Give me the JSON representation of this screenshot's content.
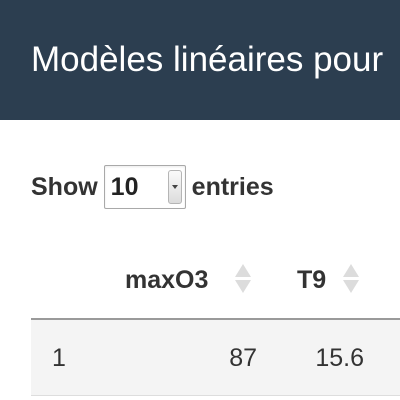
{
  "header": {
    "title": "Modèles linéaires pour"
  },
  "length_menu": {
    "prefix": "Show",
    "selected": "10",
    "suffix": "entries"
  },
  "table": {
    "columns": [
      {
        "label": "maxO3"
      },
      {
        "label": "T9"
      }
    ],
    "rows": [
      {
        "index": "1",
        "maxO3": "87",
        "T9": "15.6"
      }
    ]
  }
}
